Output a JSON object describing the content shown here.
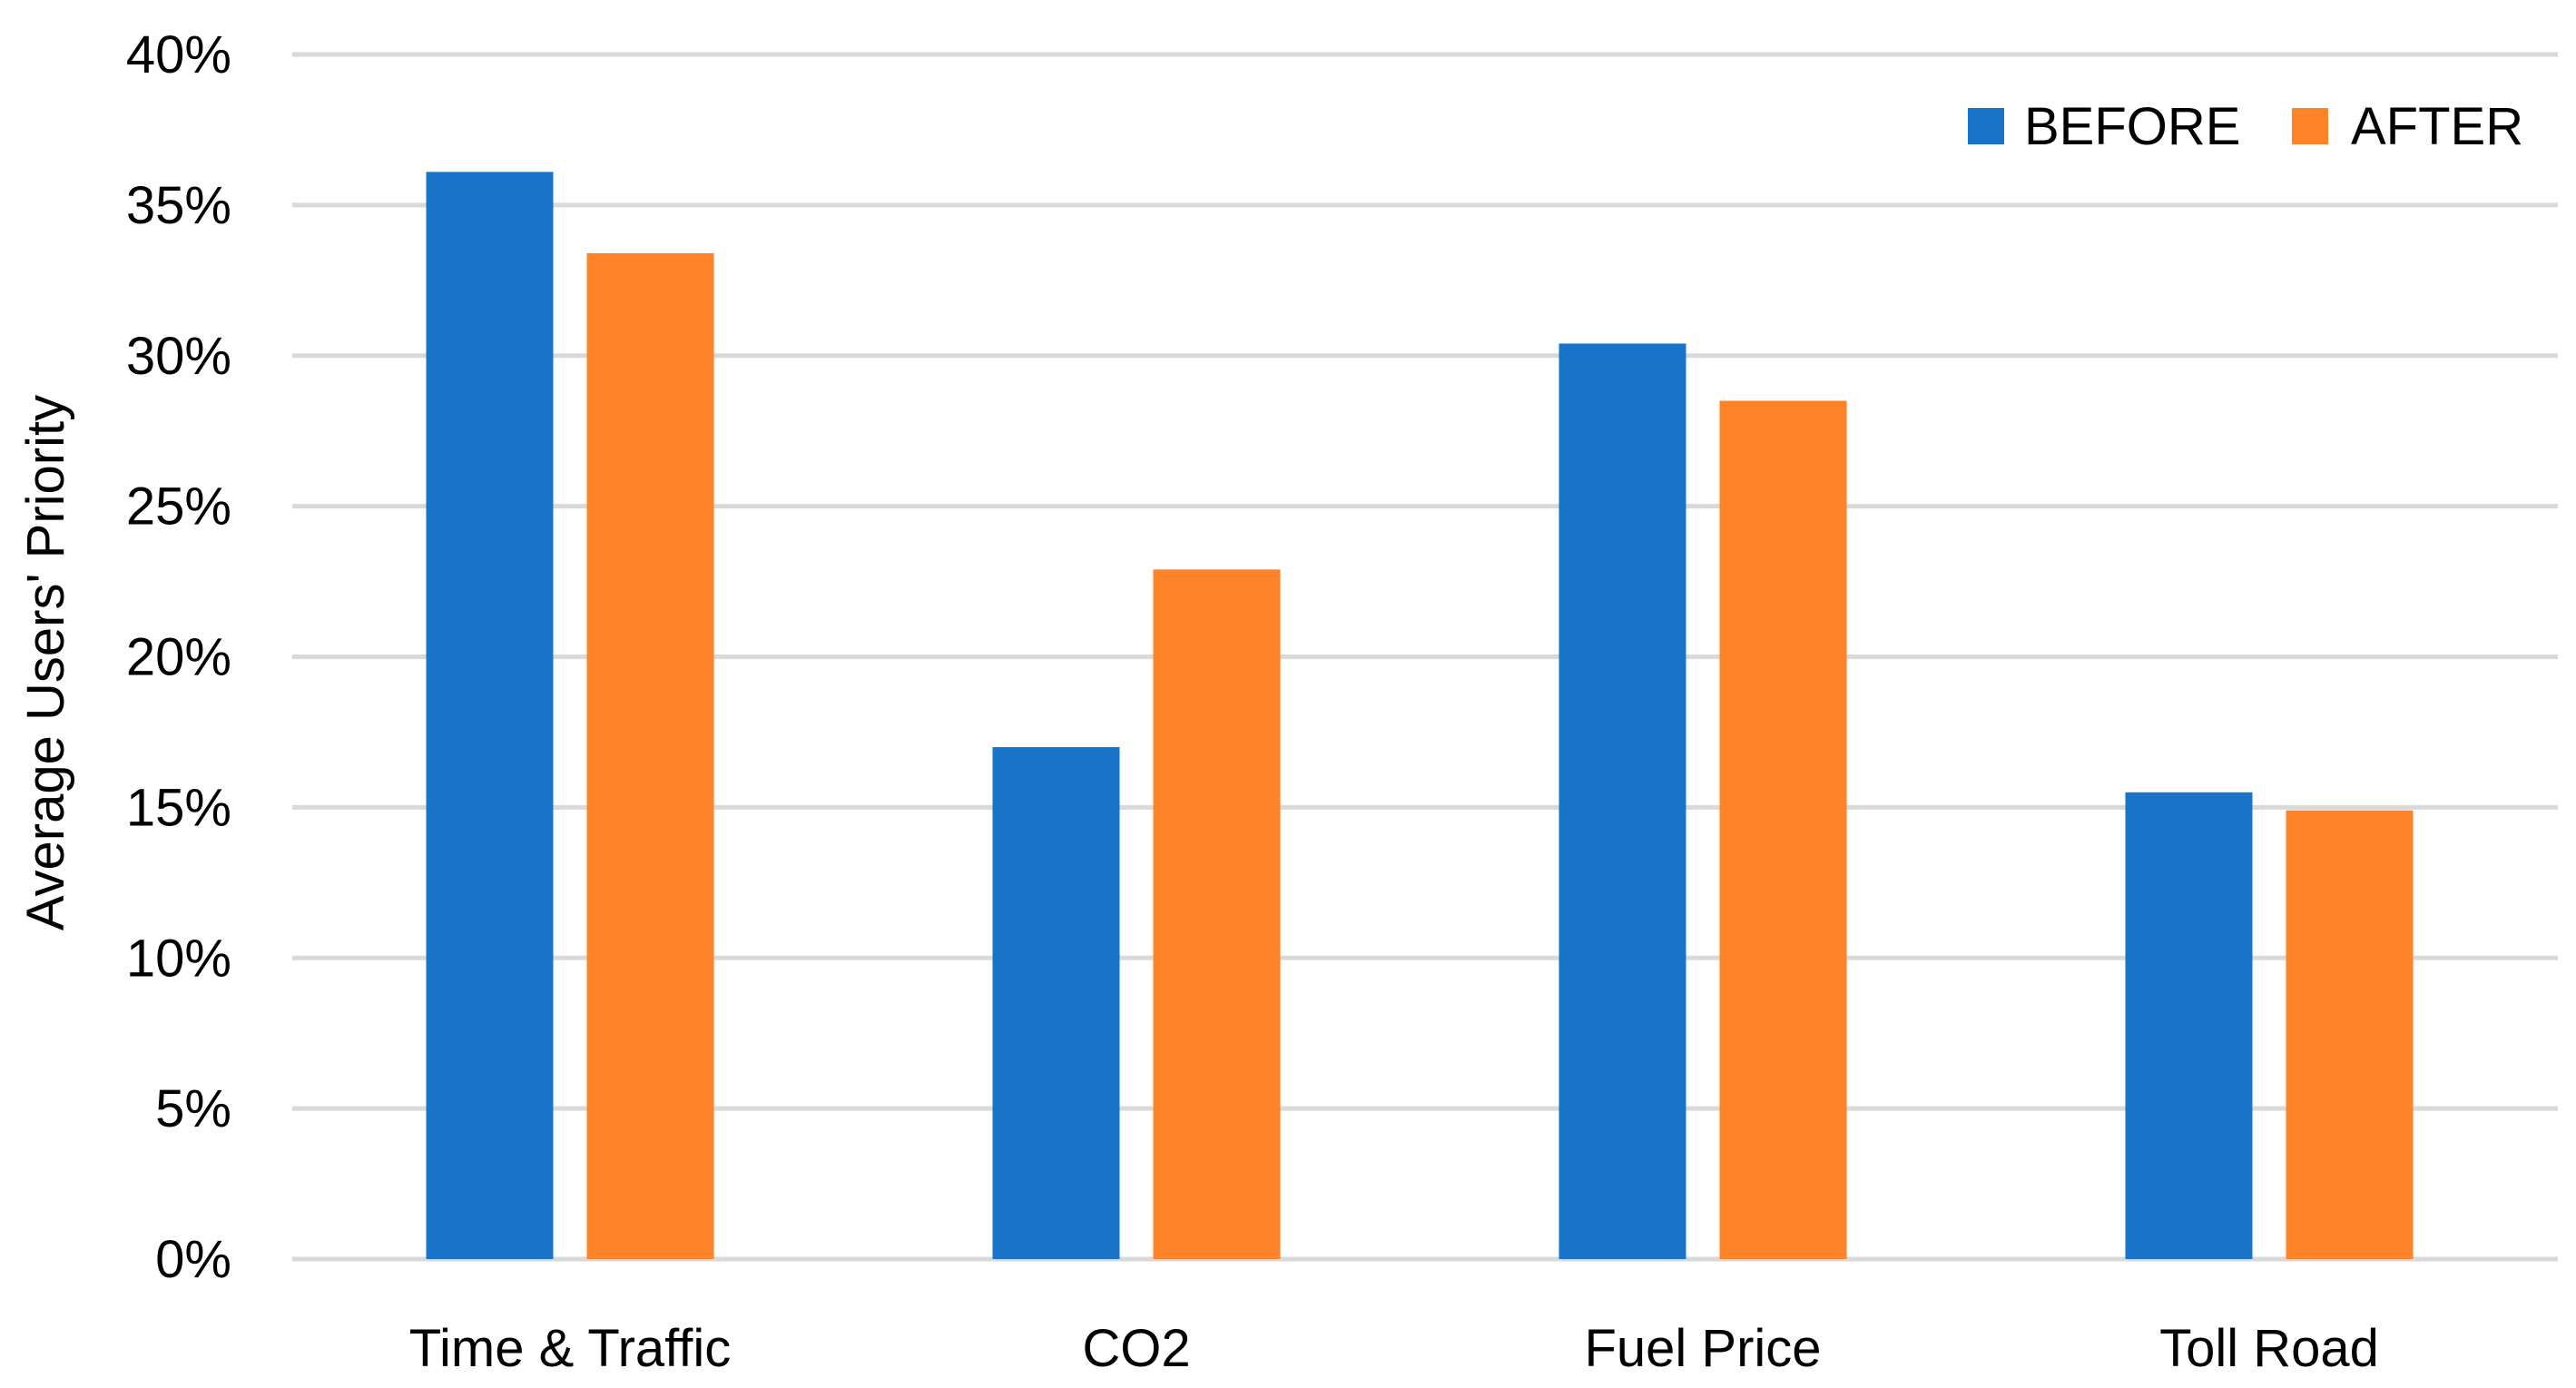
{
  "chart_data": {
    "type": "bar",
    "title": "",
    "xlabel": "",
    "ylabel": "Average Users' Priority",
    "categories": [
      "Time & Traffic",
      "CO2",
      "Fuel Price",
      "Toll Road"
    ],
    "series": [
      {
        "name": "BEFORE",
        "color": "#1874c8",
        "values": [
          36.1,
          17.0,
          30.4,
          15.5
        ]
      },
      {
        "name": "AFTER",
        "color": "#fd8228",
        "values": [
          33.4,
          22.9,
          28.5,
          14.9
        ]
      }
    ],
    "ylim": [
      0,
      40
    ],
    "yticks": [
      0,
      5,
      10,
      15,
      20,
      25,
      30,
      35,
      40
    ],
    "ytick_labels": [
      "0%",
      "5%",
      "10%",
      "15%",
      "20%",
      "25%",
      "30%",
      "35%",
      "40%"
    ],
    "grid": true,
    "legend": "top-right"
  }
}
